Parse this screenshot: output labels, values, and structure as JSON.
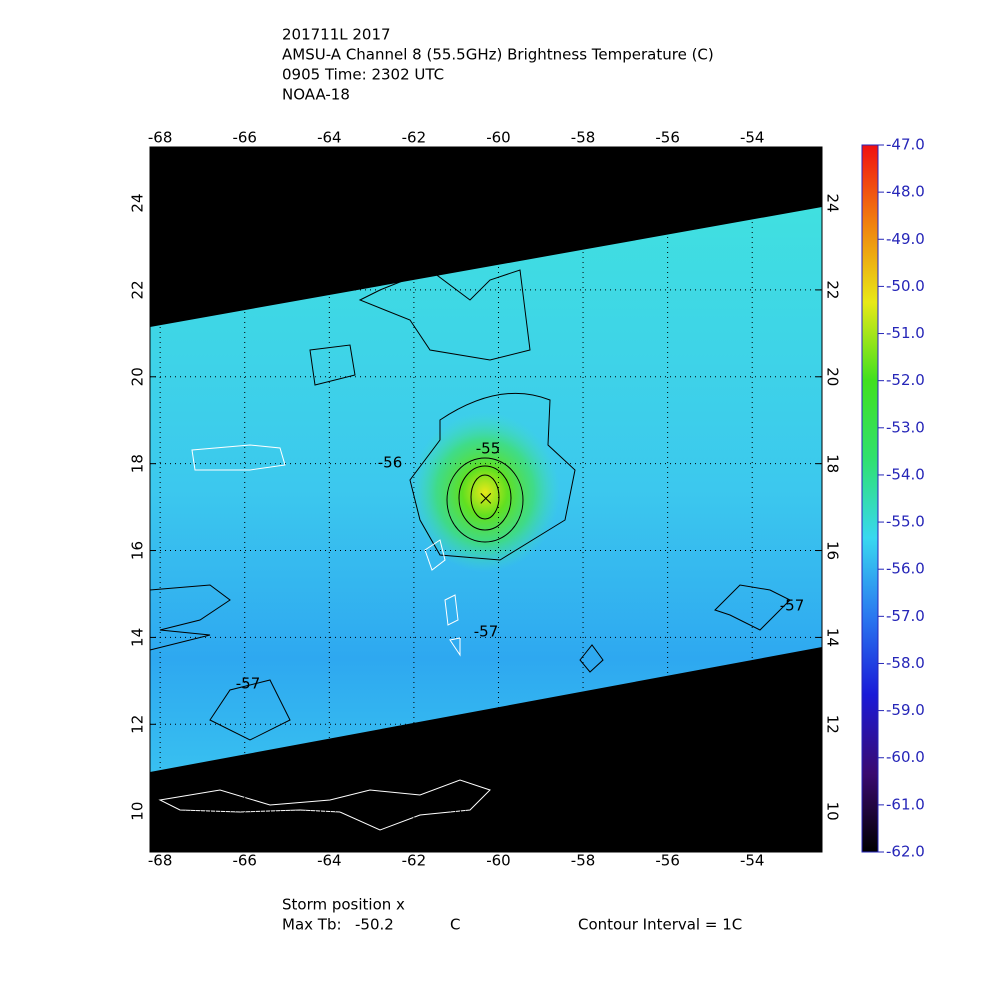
{
  "chart_data": {
    "type": "map",
    "title": [
      "201711L 2017",
      "AMSU-A Channel 8 (55.5GHz) Brightness Temperature (C)",
      "0905 Time: 2302 UTC",
      "NOAA-18"
    ],
    "xlim": [
      -68.24,
      -52.35
    ],
    "ylim": [
      9.06,
      25.29
    ],
    "xticks": [
      -68,
      -66,
      -64,
      -62,
      -60,
      -58,
      -56,
      -54
    ],
    "yticks": [
      10,
      12,
      14,
      16,
      18,
      20,
      22,
      24
    ],
    "grid": true,
    "storm_position": [
      -60.3,
      17.2
    ],
    "annotations": [
      "-55",
      "-56",
      "-57",
      "-57",
      "-57"
    ],
    "colorbar": {
      "lim": [
        -62,
        -47
      ],
      "colors": [
        "#000000",
        "#3a0a70",
        "#1a1ad8",
        "#2a78f0",
        "#38d8f0",
        "#30e070",
        "#40e020",
        "#e8e818",
        "#f08010",
        "#f01010"
      ],
      "ticks": [
        {
          "value": -47,
          "label": "-47.0"
        },
        {
          "value": -48,
          "label": "-48.0"
        },
        {
          "value": -49,
          "label": "-49.0"
        },
        {
          "value": -50,
          "label": "-50.0"
        },
        {
          "value": -51,
          "label": "-51.0"
        },
        {
          "value": -52,
          "label": "-52.0"
        },
        {
          "value": -53,
          "label": "-53.0"
        },
        {
          "value": -54,
          "label": "-54.0"
        },
        {
          "value": -55,
          "label": "-55.0"
        },
        {
          "value": -56,
          "label": "-56.0"
        },
        {
          "value": -57,
          "label": "-57.0"
        },
        {
          "value": -58,
          "label": "-58.0"
        },
        {
          "value": -59,
          "label": "-59.0"
        },
        {
          "value": -60,
          "label": "-60.0"
        },
        {
          "value": -61,
          "label": "-61.0"
        },
        {
          "value": -62,
          "label": "-62.0"
        }
      ]
    },
    "footer": {
      "storm_label": "Storm position x",
      "max_tb_label": "Max Tb:",
      "max_tb": -50.2,
      "max_tb_unit": "C",
      "contour_interval": "Contour Interval = 1C"
    }
  }
}
